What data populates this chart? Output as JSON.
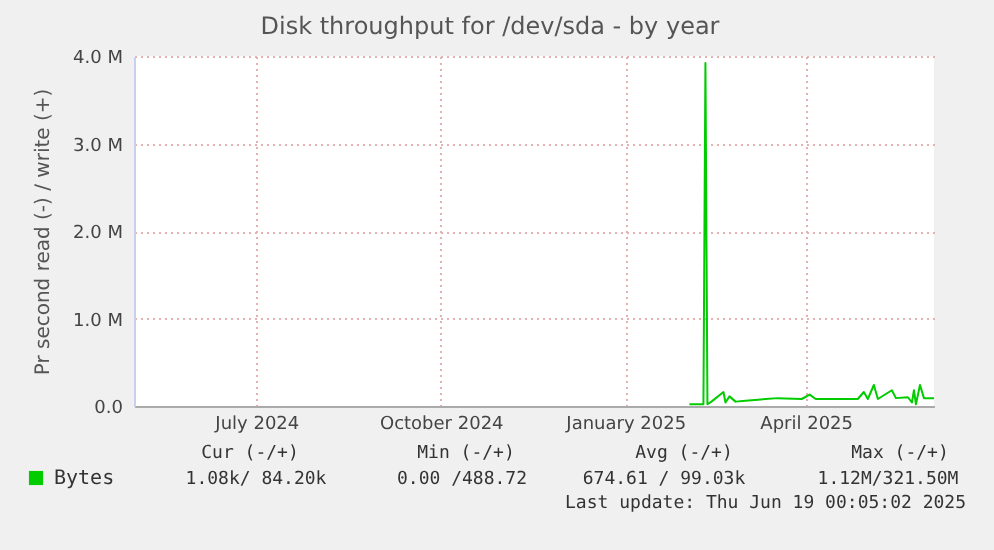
{
  "chart_data": {
    "type": "line",
    "title": "Disk throughput for /dev/sda - by year",
    "ylabel": "Pr second read (-) / write (+)",
    "x": [
      "2025-02-17",
      "2025-02-24",
      "2025-02-25",
      "2025-02-26",
      "2025-02-28",
      "2025-03-06",
      "2025-03-07",
      "2025-03-09",
      "2025-03-12",
      "2025-03-17",
      "2025-03-27",
      "2025-04-02",
      "2025-04-14",
      "2025-04-18",
      "2025-04-21",
      "2025-05-12",
      "2025-05-15",
      "2025-05-17",
      "2025-05-20",
      "2025-05-22",
      "2025-05-29",
      "2025-05-31",
      "2025-06-06",
      "2025-06-08",
      "2025-06-09",
      "2025-06-10",
      "2025-06-12",
      "2025-06-14",
      "2025-06-19"
    ],
    "series": [
      {
        "name": "Bytes",
        "color": "#00cc00",
        "values": [
          0.02,
          0.02,
          3.92,
          0.02,
          0.05,
          0.16,
          0.04,
          0.11,
          0.05,
          0.06,
          0.08,
          0.09,
          0.08,
          0.13,
          0.08,
          0.08,
          0.16,
          0.08,
          0.24,
          0.08,
          0.18,
          0.09,
          0.1,
          0.04,
          0.18,
          0.02,
          0.24,
          0.09,
          0.09
        ]
      }
    ],
    "xlim": [
      "2024-05-16",
      "2025-06-19"
    ],
    "xticks": [
      {
        "value": "2024-07-16",
        "label": "July 2024"
      },
      {
        "value": "2024-10-16",
        "label": "October 2024"
      },
      {
        "value": "2025-01-16",
        "label": "January 2025"
      },
      {
        "value": "2025-04-16",
        "label": "April 2025"
      }
    ],
    "ylim": [
      0,
      4
    ],
    "yticks": [
      {
        "value": 0,
        "label": "0.0"
      },
      {
        "value": 1,
        "label": "1.0 M"
      },
      {
        "value": 2,
        "label": "2.0 M"
      },
      {
        "value": 3,
        "label": "3.0 M"
      },
      {
        "value": 4,
        "label": "4.0 M"
      }
    ],
    "grid": true,
    "legend": "bottom left",
    "marker": "none",
    "line_style": "solid",
    "annotations": [
      "Cur (-/+)",
      "Min (-/+)",
      "Avg (-/+)",
      "Max (-/+)",
      "1.08k/ 84.20k",
      "0.00 /488.72",
      "674.61 / 99.03k",
      "1.12M/321.50M",
      "Last update: Thu Jun 19 00:05:02 2025"
    ]
  }
}
